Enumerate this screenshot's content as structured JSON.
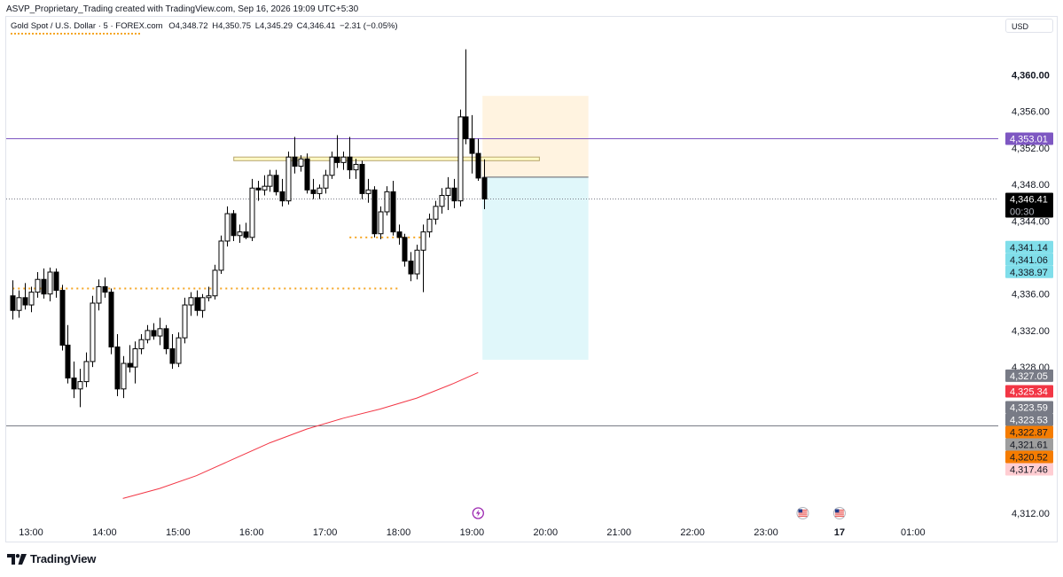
{
  "header": {
    "text": "ASVP_Proprietary_Trading created with TradingView.com, Sep 16, 2026 19:09 UTC+5:30"
  },
  "legend": {
    "symbol": "Gold Spot / U.S. Dollar · 5 · FOREX.com",
    "open": "O4,348.72",
    "high": "H4,350.75",
    "low": "L4,345.29",
    "close": "C4,346.41",
    "change": "−2.31 (−0.05%)"
  },
  "currency": "USD",
  "brand": {
    "name": "TradingView"
  },
  "chart_data": {
    "type": "candlestick",
    "symbol": "Gold Spot / U.S. Dollar",
    "interval": "5",
    "y_ticks": [
      "4,360.00",
      "4,356.00",
      "4,352.00",
      "4,348.00",
      "4,344.00",
      "4,336.00",
      "4,332.00",
      "4,328.00",
      "4,312.00"
    ],
    "x_ticks": [
      "13:00",
      "14:00",
      "15:00",
      "16:00",
      "17:00",
      "18:00",
      "19:00",
      "20:00",
      "21:00",
      "22:00",
      "23:00",
      "17",
      "01:00"
    ],
    "ylim": [
      4311,
      4363
    ],
    "colors": {
      "up": "#ffffff",
      "down": "#000000",
      "outline": "#000000",
      "ma": "#f23645"
    },
    "candles": [
      {
        "t": "12:45",
        "o": 4335.8,
        "h": 4337.5,
        "l": 4333.2,
        "c": 4334.2
      },
      {
        "t": "12:50",
        "o": 4334.2,
        "h": 4336.4,
        "l": 4333.4,
        "c": 4335.6
      },
      {
        "t": "12:55",
        "o": 4335.6,
        "h": 4337.2,
        "l": 4334.3,
        "c": 4334.8
      },
      {
        "t": "13:00",
        "o": 4334.8,
        "h": 4336.8,
        "l": 4334.0,
        "c": 4336.2
      },
      {
        "t": "13:05",
        "o": 4336.2,
        "h": 4338.4,
        "l": 4335.6,
        "c": 4337.6
      },
      {
        "t": "13:10",
        "o": 4337.6,
        "h": 4338.8,
        "l": 4335.5,
        "c": 4336.0
      },
      {
        "t": "13:15",
        "o": 4336.0,
        "h": 4338.9,
        "l": 4335.2,
        "c": 4338.4
      },
      {
        "t": "13:20",
        "o": 4338.4,
        "h": 4338.8,
        "l": 4335.6,
        "c": 4336.4
      },
      {
        "t": "13:25",
        "o": 4336.4,
        "h": 4337.0,
        "l": 4329.8,
        "c": 4330.4
      },
      {
        "t": "13:30",
        "o": 4330.4,
        "h": 4332.6,
        "l": 4326.2,
        "c": 4326.8
      },
      {
        "t": "13:35",
        "o": 4326.8,
        "h": 4328.6,
        "l": 4324.6,
        "c": 4325.6
      },
      {
        "t": "13:40",
        "o": 4325.6,
        "h": 4327.8,
        "l": 4323.6,
        "c": 4326.4
      },
      {
        "t": "13:45",
        "o": 4326.4,
        "h": 4329.6,
        "l": 4325.8,
        "c": 4328.6
      },
      {
        "t": "13:50",
        "o": 4328.6,
        "h": 4335.8,
        "l": 4328.0,
        "c": 4335.0
      },
      {
        "t": "13:55",
        "o": 4335.0,
        "h": 4337.6,
        "l": 4334.2,
        "c": 4336.8
      },
      {
        "t": "14:00",
        "o": 4336.8,
        "h": 4337.8,
        "l": 4335.6,
        "c": 4336.2
      },
      {
        "t": "14:05",
        "o": 4336.2,
        "h": 4336.6,
        "l": 4329.4,
        "c": 4330.2
      },
      {
        "t": "14:10",
        "o": 4330.2,
        "h": 4331.6,
        "l": 4324.8,
        "c": 4325.6
      },
      {
        "t": "14:15",
        "o": 4325.6,
        "h": 4329.2,
        "l": 4324.6,
        "c": 4328.4
      },
      {
        "t": "14:20",
        "o": 4328.4,
        "h": 4330.4,
        "l": 4327.4,
        "c": 4328.0
      },
      {
        "t": "14:25",
        "o": 4328.0,
        "h": 4330.8,
        "l": 4326.2,
        "c": 4330.0
      },
      {
        "t": "14:30",
        "o": 4330.0,
        "h": 4331.6,
        "l": 4329.4,
        "c": 4331.0
      },
      {
        "t": "14:35",
        "o": 4331.0,
        "h": 4332.6,
        "l": 4330.6,
        "c": 4332.0
      },
      {
        "t": "14:40",
        "o": 4332.0,
        "h": 4332.8,
        "l": 4331.0,
        "c": 4331.4
      },
      {
        "t": "14:45",
        "o": 4331.4,
        "h": 4333.4,
        "l": 4330.4,
        "c": 4332.2
      },
      {
        "t": "14:50",
        "o": 4332.2,
        "h": 4332.6,
        "l": 4329.4,
        "c": 4330.0
      },
      {
        "t": "14:55",
        "o": 4330.0,
        "h": 4331.6,
        "l": 4327.8,
        "c": 4328.4
      },
      {
        "t": "15:00",
        "o": 4328.4,
        "h": 4331.8,
        "l": 4328.0,
        "c": 4331.2
      },
      {
        "t": "15:05",
        "o": 4331.2,
        "h": 4335.6,
        "l": 4330.6,
        "c": 4334.8
      },
      {
        "t": "15:10",
        "o": 4334.8,
        "h": 4336.2,
        "l": 4333.6,
        "c": 4335.6
      },
      {
        "t": "15:15",
        "o": 4335.6,
        "h": 4336.4,
        "l": 4333.6,
        "c": 4334.2
      },
      {
        "t": "15:20",
        "o": 4334.2,
        "h": 4336.0,
        "l": 4333.4,
        "c": 4335.6
      },
      {
        "t": "15:25",
        "o": 4335.6,
        "h": 4336.8,
        "l": 4335.2,
        "c": 4335.8
      },
      {
        "t": "15:30",
        "o": 4335.8,
        "h": 4339.2,
        "l": 4335.4,
        "c": 4338.6
      },
      {
        "t": "15:35",
        "o": 4338.6,
        "h": 4342.4,
        "l": 4338.2,
        "c": 4341.8
      },
      {
        "t": "15:40",
        "o": 4341.8,
        "h": 4345.6,
        "l": 4341.2,
        "c": 4344.8
      },
      {
        "t": "15:45",
        "o": 4344.8,
        "h": 4345.2,
        "l": 4341.8,
        "c": 4342.4
      },
      {
        "t": "15:50",
        "o": 4342.4,
        "h": 4343.6,
        "l": 4341.6,
        "c": 4342.8
      },
      {
        "t": "15:55",
        "o": 4342.8,
        "h": 4343.8,
        "l": 4342.0,
        "c": 4342.2
      },
      {
        "t": "16:00",
        "o": 4342.2,
        "h": 4348.6,
        "l": 4341.8,
        "c": 4347.6
      },
      {
        "t": "16:05",
        "o": 4347.6,
        "h": 4348.4,
        "l": 4346.2,
        "c": 4347.4
      },
      {
        "t": "16:10",
        "o": 4347.4,
        "h": 4349.0,
        "l": 4346.8,
        "c": 4347.8
      },
      {
        "t": "16:15",
        "o": 4347.8,
        "h": 4349.6,
        "l": 4347.2,
        "c": 4349.0
      },
      {
        "t": "16:20",
        "o": 4349.0,
        "h": 4349.6,
        "l": 4346.8,
        "c": 4347.2
      },
      {
        "t": "16:25",
        "o": 4347.2,
        "h": 4348.6,
        "l": 4345.6,
        "c": 4346.2
      },
      {
        "t": "16:30",
        "o": 4346.2,
        "h": 4351.6,
        "l": 4345.8,
        "c": 4351.0
      },
      {
        "t": "16:35",
        "o": 4351.0,
        "h": 4353.2,
        "l": 4349.2,
        "c": 4350.0
      },
      {
        "t": "16:40",
        "o": 4350.0,
        "h": 4351.2,
        "l": 4349.4,
        "c": 4350.8
      },
      {
        "t": "16:45",
        "o": 4350.8,
        "h": 4351.4,
        "l": 4347.0,
        "c": 4347.4
      },
      {
        "t": "16:50",
        "o": 4347.4,
        "h": 4348.6,
        "l": 4346.4,
        "c": 4347.0
      },
      {
        "t": "16:55",
        "o": 4347.0,
        "h": 4348.0,
        "l": 4346.4,
        "c": 4347.6
      },
      {
        "t": "17:00",
        "o": 4347.6,
        "h": 4349.6,
        "l": 4347.0,
        "c": 4349.0
      },
      {
        "t": "17:05",
        "o": 4349.0,
        "h": 4351.6,
        "l": 4348.6,
        "c": 4351.0
      },
      {
        "t": "17:10",
        "o": 4351.0,
        "h": 4353.4,
        "l": 4349.8,
        "c": 4350.4
      },
      {
        "t": "17:15",
        "o": 4350.4,
        "h": 4351.6,
        "l": 4349.6,
        "c": 4351.0
      },
      {
        "t": "17:20",
        "o": 4351.0,
        "h": 4353.2,
        "l": 4348.6,
        "c": 4349.6
      },
      {
        "t": "17:25",
        "o": 4349.6,
        "h": 4350.8,
        "l": 4348.6,
        "c": 4350.2
      },
      {
        "t": "17:30",
        "o": 4350.2,
        "h": 4350.6,
        "l": 4346.4,
        "c": 4347.0
      },
      {
        "t": "17:35",
        "o": 4347.0,
        "h": 4348.6,
        "l": 4346.0,
        "c": 4347.4
      },
      {
        "t": "17:40",
        "o": 4347.4,
        "h": 4347.8,
        "l": 4342.2,
        "c": 4342.6
      },
      {
        "t": "17:45",
        "o": 4342.6,
        "h": 4345.6,
        "l": 4342.0,
        "c": 4345.0
      },
      {
        "t": "17:50",
        "o": 4345.0,
        "h": 4347.8,
        "l": 4344.6,
        "c": 4347.2
      },
      {
        "t": "17:55",
        "o": 4347.2,
        "h": 4348.4,
        "l": 4342.4,
        "c": 4342.8
      },
      {
        "t": "18:00",
        "o": 4342.8,
        "h": 4343.6,
        "l": 4341.4,
        "c": 4342.2
      },
      {
        "t": "18:05",
        "o": 4342.2,
        "h": 4342.6,
        "l": 4339.0,
        "c": 4339.6
      },
      {
        "t": "18:10",
        "o": 4339.6,
        "h": 4340.6,
        "l": 4337.4,
        "c": 4338.2
      },
      {
        "t": "18:15",
        "o": 4338.2,
        "h": 4341.4,
        "l": 4337.6,
        "c": 4340.8
      },
      {
        "t": "18:20",
        "o": 4340.8,
        "h": 4343.6,
        "l": 4336.2,
        "c": 4342.8
      },
      {
        "t": "18:25",
        "o": 4342.8,
        "h": 4344.8,
        "l": 4342.2,
        "c": 4344.2
      },
      {
        "t": "18:30",
        "o": 4344.2,
        "h": 4346.2,
        "l": 4343.6,
        "c": 4345.6
      },
      {
        "t": "18:35",
        "o": 4345.6,
        "h": 4347.6,
        "l": 4344.8,
        "c": 4346.8
      },
      {
        "t": "18:40",
        "o": 4346.8,
        "h": 4348.8,
        "l": 4345.2,
        "c": 4347.6
      },
      {
        "t": "18:45",
        "o": 4347.6,
        "h": 4348.6,
        "l": 4345.4,
        "c": 4346.2
      },
      {
        "t": "18:50",
        "o": 4346.2,
        "h": 4356.2,
        "l": 4345.6,
        "c": 4355.4
      },
      {
        "t": "18:55",
        "o": 4355.4,
        "h": 4362.8,
        "l": 4352.4,
        "c": 4353.0
      },
      {
        "t": "19:00",
        "o": 4353.0,
        "h": 4355.6,
        "l": 4349.2,
        "c": 4351.4
      },
      {
        "t": "19:05",
        "o": 4351.4,
        "h": 4353.0,
        "l": 4348.4,
        "c": 4348.7
      },
      {
        "t": "19:10",
        "o": 4348.72,
        "h": 4350.75,
        "l": 4345.29,
        "c": 4346.41
      }
    ],
    "moving_average": {
      "color": "#f23645",
      "points": [
        {
          "t": "14:15",
          "v": 4313.6
        },
        {
          "t": "14:45",
          "v": 4314.7
        },
        {
          "t": "15:15",
          "v": 4316.1
        },
        {
          "t": "15:45",
          "v": 4317.9
        },
        {
          "t": "16:15",
          "v": 4319.7
        },
        {
          "t": "16:45",
          "v": 4321.2
        },
        {
          "t": "17:15",
          "v": 4322.4
        },
        {
          "t": "17:45",
          "v": 4323.4
        },
        {
          "t": "18:15",
          "v": 4324.6
        },
        {
          "t": "18:45",
          "v": 4326.2
        },
        {
          "t": "19:05",
          "v": 4327.4
        }
      ]
    },
    "horizontal_lines": [
      {
        "name": "purple-level",
        "value": 4353.01,
        "color": "#7e57c2",
        "style": "solid"
      },
      {
        "name": "grey-level",
        "value": 4321.61,
        "color": "#787b86",
        "style": "solid"
      },
      {
        "name": "last-price-line",
        "value": 4346.41,
        "color": "#787b86",
        "style": "dotted"
      }
    ],
    "segments": [
      {
        "name": "orange-dotted-level-left",
        "from": "12:45",
        "to": "18:00",
        "value": 4336.6,
        "color": "#f5a623",
        "style": "dotted"
      },
      {
        "name": "orange-dotted-level-mid",
        "from": "17:20",
        "to": "18:25",
        "value": 4342.2,
        "color": "#f5a623",
        "style": "dotted"
      }
    ],
    "zone": {
      "name": "resistance-zone",
      "from": "16:00",
      "to": "19:55",
      "top": 4351.0,
      "bottom": 4350.6,
      "fill": "#fff9c4",
      "stroke": "#b8a770"
    },
    "position": {
      "from": "19:10",
      "to": "20:35",
      "entry": 4348.8,
      "target_top": 4357.7,
      "stop_bottom": 4328.8,
      "upper_fill": "#fff3e0",
      "lower_fill": "#e0f7fa",
      "entry_color": "#26a69a"
    },
    "price_labels": [
      {
        "text": "4,353.01",
        "value": 4353.01,
        "bg": "#7e57c2",
        "fg": "#ffffff"
      },
      {
        "text": "4,346.41",
        "value": 4346.41,
        "bg": "#000000",
        "fg": "#ffffff",
        "sub": "00:30"
      },
      {
        "text": "4,341.14",
        "value": 4341.14,
        "bg": "#80deea",
        "fg": "#131722"
      },
      {
        "text": "4,341.06",
        "value": 4341.06,
        "bg": "#80deea",
        "fg": "#131722"
      },
      {
        "text": "4,338.97",
        "value": 4338.97,
        "bg": "#80deea",
        "fg": "#131722"
      },
      {
        "text": "4,327.05",
        "value": 4327.05,
        "bg": "#787b86",
        "fg": "#ffffff"
      },
      {
        "text": "4,325.34",
        "value": 4325.34,
        "bg": "#f23645",
        "fg": "#ffffff"
      },
      {
        "text": "4,323.59",
        "value": 4323.59,
        "bg": "#787b86",
        "fg": "#ffffff"
      },
      {
        "text": "4,323.53",
        "value": 4323.53,
        "bg": "#787b86",
        "fg": "#ffffff"
      },
      {
        "text": "4,322.87",
        "value": 4322.87,
        "bg": "#f57c00",
        "fg": "#131722"
      },
      {
        "text": "4,321.61",
        "value": 4321.61,
        "bg": "#9e9e9e",
        "fg": "#131722"
      },
      {
        "text": "4,320.52",
        "value": 4320.52,
        "bg": "#f57c00",
        "fg": "#131722"
      },
      {
        "text": "4,317.46",
        "value": 4317.46,
        "bg": "#ffcdd2",
        "fg": "#131722"
      }
    ],
    "events": [
      {
        "name": "lightning-event-icon",
        "time": "19:05"
      },
      {
        "name": "us-flag-event-icon",
        "time": "23:30"
      },
      {
        "name": "us-flag-event-icon",
        "time": "00:00"
      }
    ]
  }
}
